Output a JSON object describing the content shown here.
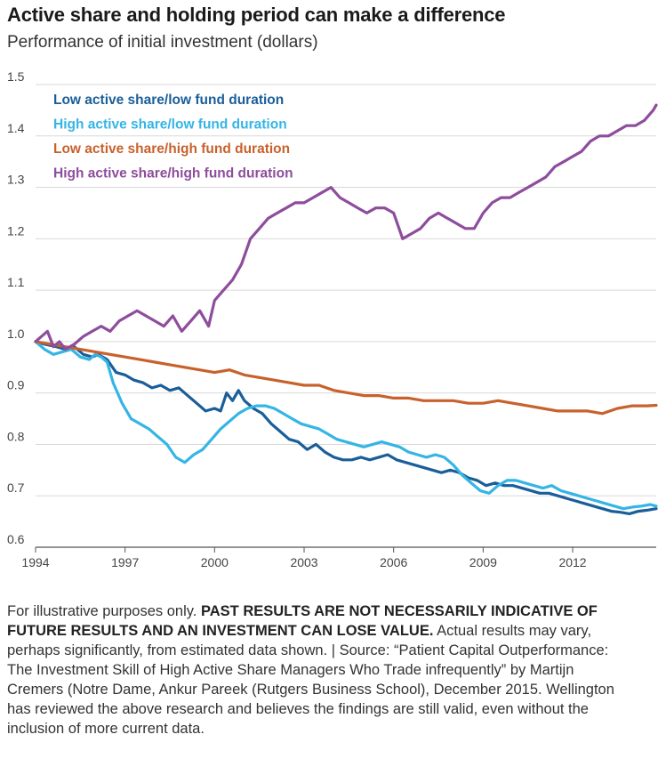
{
  "title": "Active share and holding period can make a difference",
  "subtitle": "Performance of initial investment (dollars)",
  "footnote": {
    "intro": "For illustrative purposes only.",
    "disclaimer": "PAST RESULTS ARE NOT NECESSARILY INDICATIVE OF FUTURE RESULTS AND AN INVESTMENT CAN LOSE VALUE.",
    "body": "Actual results may vary, perhaps significantly, from estimated data shown. | Source: “Patient Capital Outperformance: The Investment Skill of High Active Share Managers Who Trade infrequently” by Martijn Cremers (Notre Dame, Ankur Pareek (Rutgers Business School), December 2015. Wellington has reviewed the above research and believes the findings are still valid, even without the inclusion of more current data."
  },
  "colors": {
    "low_low": "#1a5e99",
    "high_low": "#35b5e5",
    "low_high": "#c8612c",
    "high_high": "#8e4d9c",
    "grid": "#d9d9d9",
    "axis": "#555555"
  },
  "chart_data": {
    "type": "line",
    "title": "Active share and holding period can make a difference",
    "ylabel": "Performance of initial investment (dollars)",
    "xlabel": "",
    "xlim": [
      1994,
      2014.8
    ],
    "ylim": [
      0.6,
      1.5
    ],
    "x_ticks": [
      1994,
      1997,
      2000,
      2003,
      2006,
      2009,
      2012
    ],
    "x_tick_labels": [
      "1994",
      "1997",
      "2000",
      "2003",
      "2006",
      "2009",
      "2012"
    ],
    "y_ticks": [
      0.6,
      0.7,
      0.8,
      0.9,
      1.0,
      1.1,
      1.2,
      1.3,
      1.4,
      1.5
    ],
    "y_tick_labels": [
      "0.6",
      "0.7",
      "0.8",
      "0.9",
      "1.0",
      "1.1",
      "1.2",
      "1.3",
      "1.4",
      "1.5"
    ],
    "grid": "horizontal",
    "legend_position": "top-left",
    "series": [
      {
        "name": "Low active share/low fund duration",
        "color_key": "low_low",
        "x": [
          1994.0,
          1994.3,
          1994.7,
          1995.0,
          1995.3,
          1995.6,
          1995.9,
          1996.1,
          1996.4,
          1996.7,
          1997.0,
          1997.3,
          1997.6,
          1997.9,
          1998.2,
          1998.5,
          1998.8,
          1999.1,
          1999.4,
          1999.7,
          2000.0,
          2000.2,
          2000.4,
          2000.6,
          2000.8,
          2001.0,
          2001.3,
          2001.6,
          2001.9,
          2002.2,
          2002.5,
          2002.8,
          2003.1,
          2003.4,
          2003.7,
          2004.0,
          2004.3,
          2004.6,
          2004.9,
          2005.2,
          2005.5,
          2005.8,
          2006.1,
          2006.4,
          2006.7,
          2007.0,
          2007.3,
          2007.6,
          2007.9,
          2008.2,
          2008.5,
          2008.8,
          2009.1,
          2009.4,
          2009.7,
          2010.0,
          2010.3,
          2010.6,
          2010.9,
          2011.2,
          2011.5,
          2011.8,
          2012.1,
          2012.4,
          2012.7,
          2013.0,
          2013.3,
          2013.6,
          2013.9,
          2014.2,
          2014.5,
          2014.8
        ],
        "y": [
          1.0,
          0.995,
          0.99,
          0.985,
          0.99,
          0.975,
          0.97,
          0.975,
          0.965,
          0.94,
          0.935,
          0.925,
          0.92,
          0.91,
          0.915,
          0.905,
          0.91,
          0.895,
          0.88,
          0.865,
          0.87,
          0.865,
          0.9,
          0.885,
          0.905,
          0.885,
          0.87,
          0.86,
          0.84,
          0.825,
          0.81,
          0.805,
          0.79,
          0.8,
          0.785,
          0.775,
          0.77,
          0.77,
          0.775,
          0.77,
          0.775,
          0.78,
          0.77,
          0.765,
          0.76,
          0.755,
          0.75,
          0.745,
          0.75,
          0.745,
          0.735,
          0.73,
          0.72,
          0.725,
          0.72,
          0.72,
          0.715,
          0.71,
          0.705,
          0.705,
          0.7,
          0.695,
          0.69,
          0.685,
          0.68,
          0.675,
          0.67,
          0.668,
          0.665,
          0.67,
          0.672,
          0.675
        ]
      },
      {
        "name": "High active share/low fund duration",
        "color_key": "high_low",
        "x": [
          1994.0,
          1994.3,
          1994.6,
          1994.9,
          1995.2,
          1995.5,
          1995.8,
          1996.0,
          1996.2,
          1996.4,
          1996.6,
          1996.9,
          1997.2,
          1997.5,
          1997.8,
          1998.1,
          1998.4,
          1998.7,
          1999.0,
          1999.3,
          1999.6,
          1999.9,
          2000.2,
          2000.5,
          2000.8,
          2001.1,
          2001.4,
          2001.7,
          2002.0,
          2002.3,
          2002.6,
          2002.9,
          2003.2,
          2003.5,
          2003.8,
          2004.1,
          2004.4,
          2004.7,
          2005.0,
          2005.3,
          2005.6,
          2005.9,
          2006.2,
          2006.5,
          2006.8,
          2007.1,
          2007.4,
          2007.7,
          2008.0,
          2008.3,
          2008.6,
          2008.9,
          2009.2,
          2009.5,
          2009.8,
          2010.1,
          2010.4,
          2010.7,
          2011.0,
          2011.3,
          2011.6,
          2011.9,
          2012.2,
          2012.5,
          2012.8,
          2013.1,
          2013.4,
          2013.7,
          2014.0,
          2014.3,
          2014.6,
          2014.8
        ],
        "y": [
          1.0,
          0.985,
          0.975,
          0.98,
          0.985,
          0.97,
          0.965,
          0.975,
          0.97,
          0.96,
          0.92,
          0.88,
          0.85,
          0.84,
          0.83,
          0.815,
          0.8,
          0.775,
          0.765,
          0.78,
          0.79,
          0.81,
          0.83,
          0.845,
          0.86,
          0.87,
          0.875,
          0.875,
          0.87,
          0.86,
          0.85,
          0.84,
          0.835,
          0.83,
          0.82,
          0.81,
          0.805,
          0.8,
          0.795,
          0.8,
          0.805,
          0.8,
          0.795,
          0.785,
          0.78,
          0.775,
          0.78,
          0.775,
          0.76,
          0.74,
          0.725,
          0.71,
          0.705,
          0.72,
          0.73,
          0.73,
          0.725,
          0.72,
          0.715,
          0.72,
          0.71,
          0.705,
          0.7,
          0.695,
          0.69,
          0.685,
          0.68,
          0.675,
          0.678,
          0.68,
          0.683,
          0.68
        ]
      },
      {
        "name": "Low active share/high fund duration",
        "color_key": "low_high",
        "x": [
          1994.0,
          1994.5,
          1995.0,
          1995.5,
          1996.0,
          1996.5,
          1997.0,
          1997.5,
          1998.0,
          1998.5,
          1999.0,
          1999.5,
          2000.0,
          2000.5,
          2001.0,
          2001.5,
          2002.0,
          2002.5,
          2003.0,
          2003.5,
          2004.0,
          2004.5,
          2005.0,
          2005.5,
          2006.0,
          2006.5,
          2007.0,
          2007.5,
          2008.0,
          2008.5,
          2009.0,
          2009.5,
          2010.0,
          2010.5,
          2011.0,
          2011.5,
          2012.0,
          2012.5,
          2013.0,
          2013.5,
          2014.0,
          2014.5,
          2014.8
        ],
        "y": [
          1.0,
          0.995,
          0.99,
          0.985,
          0.98,
          0.975,
          0.97,
          0.965,
          0.96,
          0.955,
          0.95,
          0.945,
          0.94,
          0.945,
          0.935,
          0.93,
          0.925,
          0.92,
          0.915,
          0.915,
          0.905,
          0.9,
          0.895,
          0.895,
          0.89,
          0.89,
          0.885,
          0.885,
          0.885,
          0.88,
          0.88,
          0.885,
          0.88,
          0.875,
          0.87,
          0.865,
          0.865,
          0.865,
          0.86,
          0.87,
          0.875,
          0.875,
          0.876
        ]
      },
      {
        "name": "High active share/high fund duration",
        "color_key": "high_high",
        "x": [
          1994.0,
          1994.2,
          1994.4,
          1994.6,
          1994.8,
          1995.0,
          1995.3,
          1995.6,
          1995.9,
          1996.2,
          1996.5,
          1996.8,
          1997.1,
          1997.4,
          1997.7,
          1998.0,
          1998.3,
          1998.6,
          1998.9,
          1999.2,
          1999.5,
          1999.8,
          2000.0,
          2000.3,
          2000.6,
          2000.9,
          2001.2,
          2001.5,
          2001.8,
          2002.1,
          2002.4,
          2002.7,
          2003.0,
          2003.3,
          2003.6,
          2003.9,
          2004.2,
          2004.5,
          2004.8,
          2005.1,
          2005.4,
          2005.7,
          2006.0,
          2006.3,
          2006.6,
          2006.9,
          2007.2,
          2007.5,
          2007.8,
          2008.1,
          2008.4,
          2008.7,
          2009.0,
          2009.3,
          2009.6,
          2009.9,
          2010.2,
          2010.5,
          2010.8,
          2011.1,
          2011.4,
          2011.7,
          2012.0,
          2012.3,
          2012.6,
          2012.9,
          2013.2,
          2013.5,
          2013.8,
          2014.1,
          2014.4,
          2014.7,
          2014.8
        ],
        "y": [
          1.0,
          1.01,
          1.02,
          0.99,
          1.0,
          0.985,
          0.995,
          1.01,
          1.02,
          1.03,
          1.02,
          1.04,
          1.05,
          1.06,
          1.05,
          1.04,
          1.03,
          1.05,
          1.02,
          1.04,
          1.06,
          1.03,
          1.08,
          1.1,
          1.12,
          1.15,
          1.2,
          1.22,
          1.24,
          1.25,
          1.26,
          1.27,
          1.27,
          1.28,
          1.29,
          1.3,
          1.28,
          1.27,
          1.26,
          1.25,
          1.26,
          1.26,
          1.25,
          1.2,
          1.21,
          1.22,
          1.24,
          1.25,
          1.24,
          1.23,
          1.22,
          1.22,
          1.25,
          1.27,
          1.28,
          1.28,
          1.29,
          1.3,
          1.31,
          1.32,
          1.34,
          1.35,
          1.36,
          1.37,
          1.39,
          1.4,
          1.4,
          1.41,
          1.42,
          1.42,
          1.43,
          1.45,
          1.46
        ]
      }
    ]
  }
}
